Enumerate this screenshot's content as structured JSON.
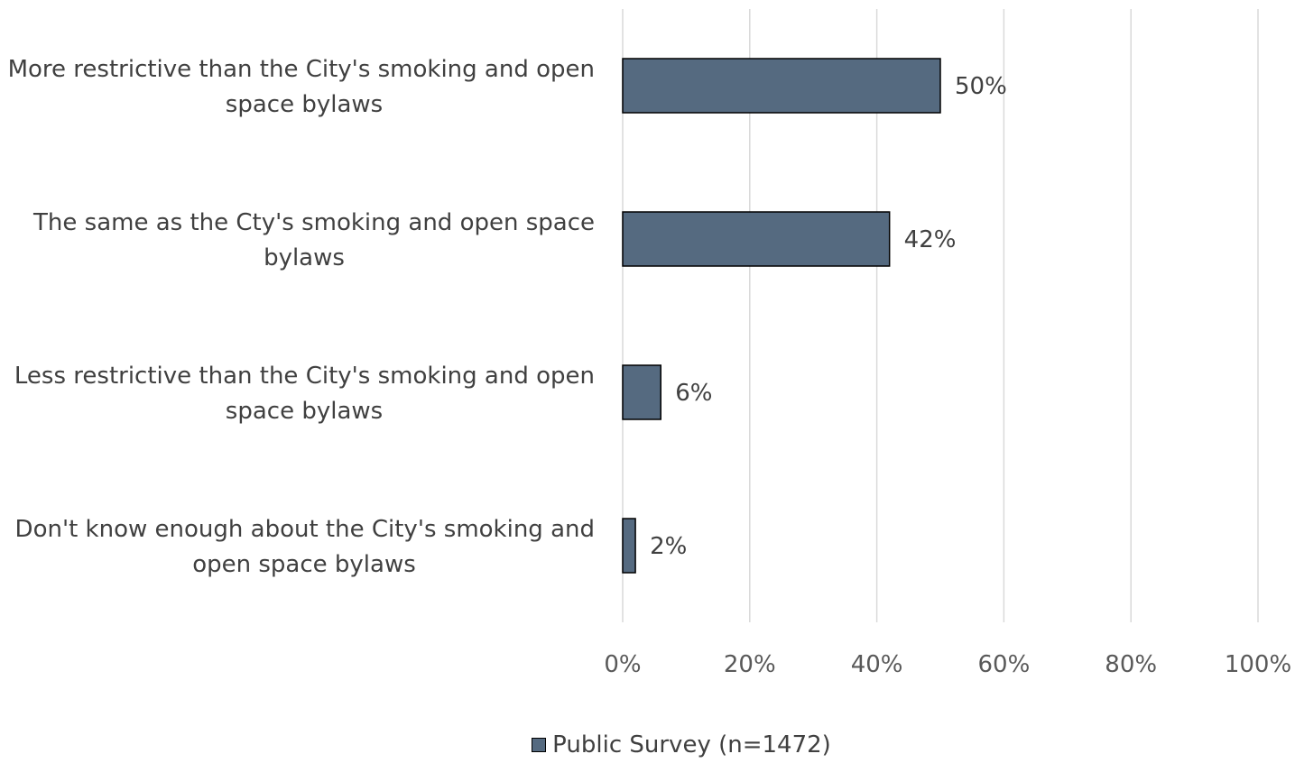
{
  "chart_data": {
    "type": "bar",
    "orientation": "horizontal",
    "categories": [
      [
        "More restrictive than the City's smoking and open",
        "space bylaws"
      ],
      [
        "The same as the Cty's smoking and open space",
        "bylaws"
      ],
      [
        "Less restrictive than the City's smoking and open",
        "space bylaws"
      ],
      [
        "Don't know enough about the City's smoking and",
        "open space bylaws"
      ]
    ],
    "series": [
      {
        "name": "Public Survey (n=1472)",
        "values": [
          50,
          42,
          6,
          2
        ],
        "labels": [
          "50%",
          "42%",
          "6%",
          "2%"
        ]
      }
    ],
    "xlim": [
      0,
      100
    ],
    "xticks": [
      0,
      20,
      40,
      60,
      80,
      100
    ],
    "xtick_labels": [
      "0%",
      "20%",
      "40%",
      "60%",
      "80%",
      "100%"
    ],
    "grid": "vertical",
    "legend_position": "bottom",
    "colors": {
      "bar": "#556a80",
      "bar_border": "#000000",
      "grid": "#d9d9d9"
    }
  }
}
